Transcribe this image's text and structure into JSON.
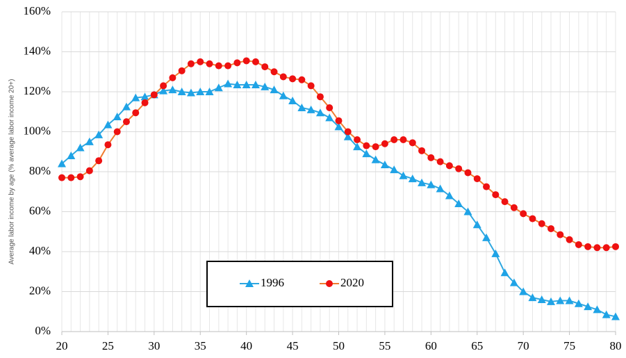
{
  "chart_data": {
    "type": "line",
    "y_label": "Average labor income by age (% average labor income 20+)",
    "x": [
      20,
      21,
      22,
      23,
      24,
      25,
      26,
      27,
      28,
      29,
      30,
      31,
      32,
      33,
      34,
      35,
      36,
      37,
      38,
      39,
      40,
      41,
      42,
      43,
      44,
      45,
      46,
      47,
      48,
      49,
      50,
      51,
      52,
      53,
      54,
      55,
      56,
      57,
      58,
      59,
      60,
      61,
      62,
      63,
      64,
      65,
      66,
      67,
      68,
      69,
      70,
      71,
      72,
      73,
      74,
      75,
      76,
      77,
      78,
      79,
      80
    ],
    "series": [
      {
        "name": "1996",
        "color": "#2ea7e0",
        "marker": "triangle",
        "marker_color": "#1fa3e6",
        "values": [
          84,
          88,
          92,
          95,
          98.5,
          103.5,
          107.5,
          112.5,
          117,
          117.5,
          118.5,
          120.5,
          121,
          120,
          119.5,
          120,
          120,
          122,
          124,
          123.5,
          123.5,
          123.5,
          122.5,
          121,
          118,
          115.5,
          112,
          111,
          109.5,
          107,
          102.5,
          97.5,
          92.5,
          89,
          86,
          83.5,
          81,
          78,
          76.5,
          74.5,
          73.5,
          71.5,
          68,
          64,
          60,
          53.5,
          47,
          39,
          29.5,
          24.5,
          20,
          17,
          16,
          15,
          15.5,
          15.5,
          14,
          12.5,
          11,
          8.5,
          7.5
        ]
      },
      {
        "name": "2020",
        "color": "#f07d30",
        "marker": "circle",
        "marker_color": "#ee1111",
        "values": [
          77,
          77,
          77.5,
          80.5,
          85.5,
          93.5,
          100,
          105,
          109.5,
          114.5,
          118.5,
          123,
          127,
          130.5,
          134,
          135,
          134,
          133,
          133,
          134.5,
          135.5,
          135,
          132.5,
          130,
          127.5,
          126.5,
          126,
          123,
          117.5,
          112,
          105.5,
          100,
          96,
          93,
          92.5,
          94,
          96,
          96,
          94.5,
          90.5,
          87,
          85,
          83,
          81.5,
          79.5,
          76.5,
          72.5,
          68.5,
          65,
          62,
          59,
          56.5,
          54,
          51.5,
          48.5,
          46,
          43.5,
          42.5,
          42,
          42,
          42.5
        ]
      }
    ],
    "xlim": [
      20,
      80
    ],
    "xticks": [
      20,
      25,
      30,
      35,
      40,
      45,
      50,
      55,
      60,
      65,
      70,
      75,
      80
    ],
    "ylim": [
      0,
      160
    ],
    "yticks": [
      {
        "value": 0,
        "label": "0%"
      },
      {
        "value": 20,
        "label": "20%"
      },
      {
        "value": 40,
        "label": "40%"
      },
      {
        "value": 60,
        "label": "60%"
      },
      {
        "value": 80,
        "label": "80%"
      },
      {
        "value": 100,
        "label": "100%"
      },
      {
        "value": 120,
        "label": "120%"
      },
      {
        "value": 140,
        "label": "140%"
      },
      {
        "value": 160,
        "label": "160%"
      }
    ],
    "grid": true
  }
}
